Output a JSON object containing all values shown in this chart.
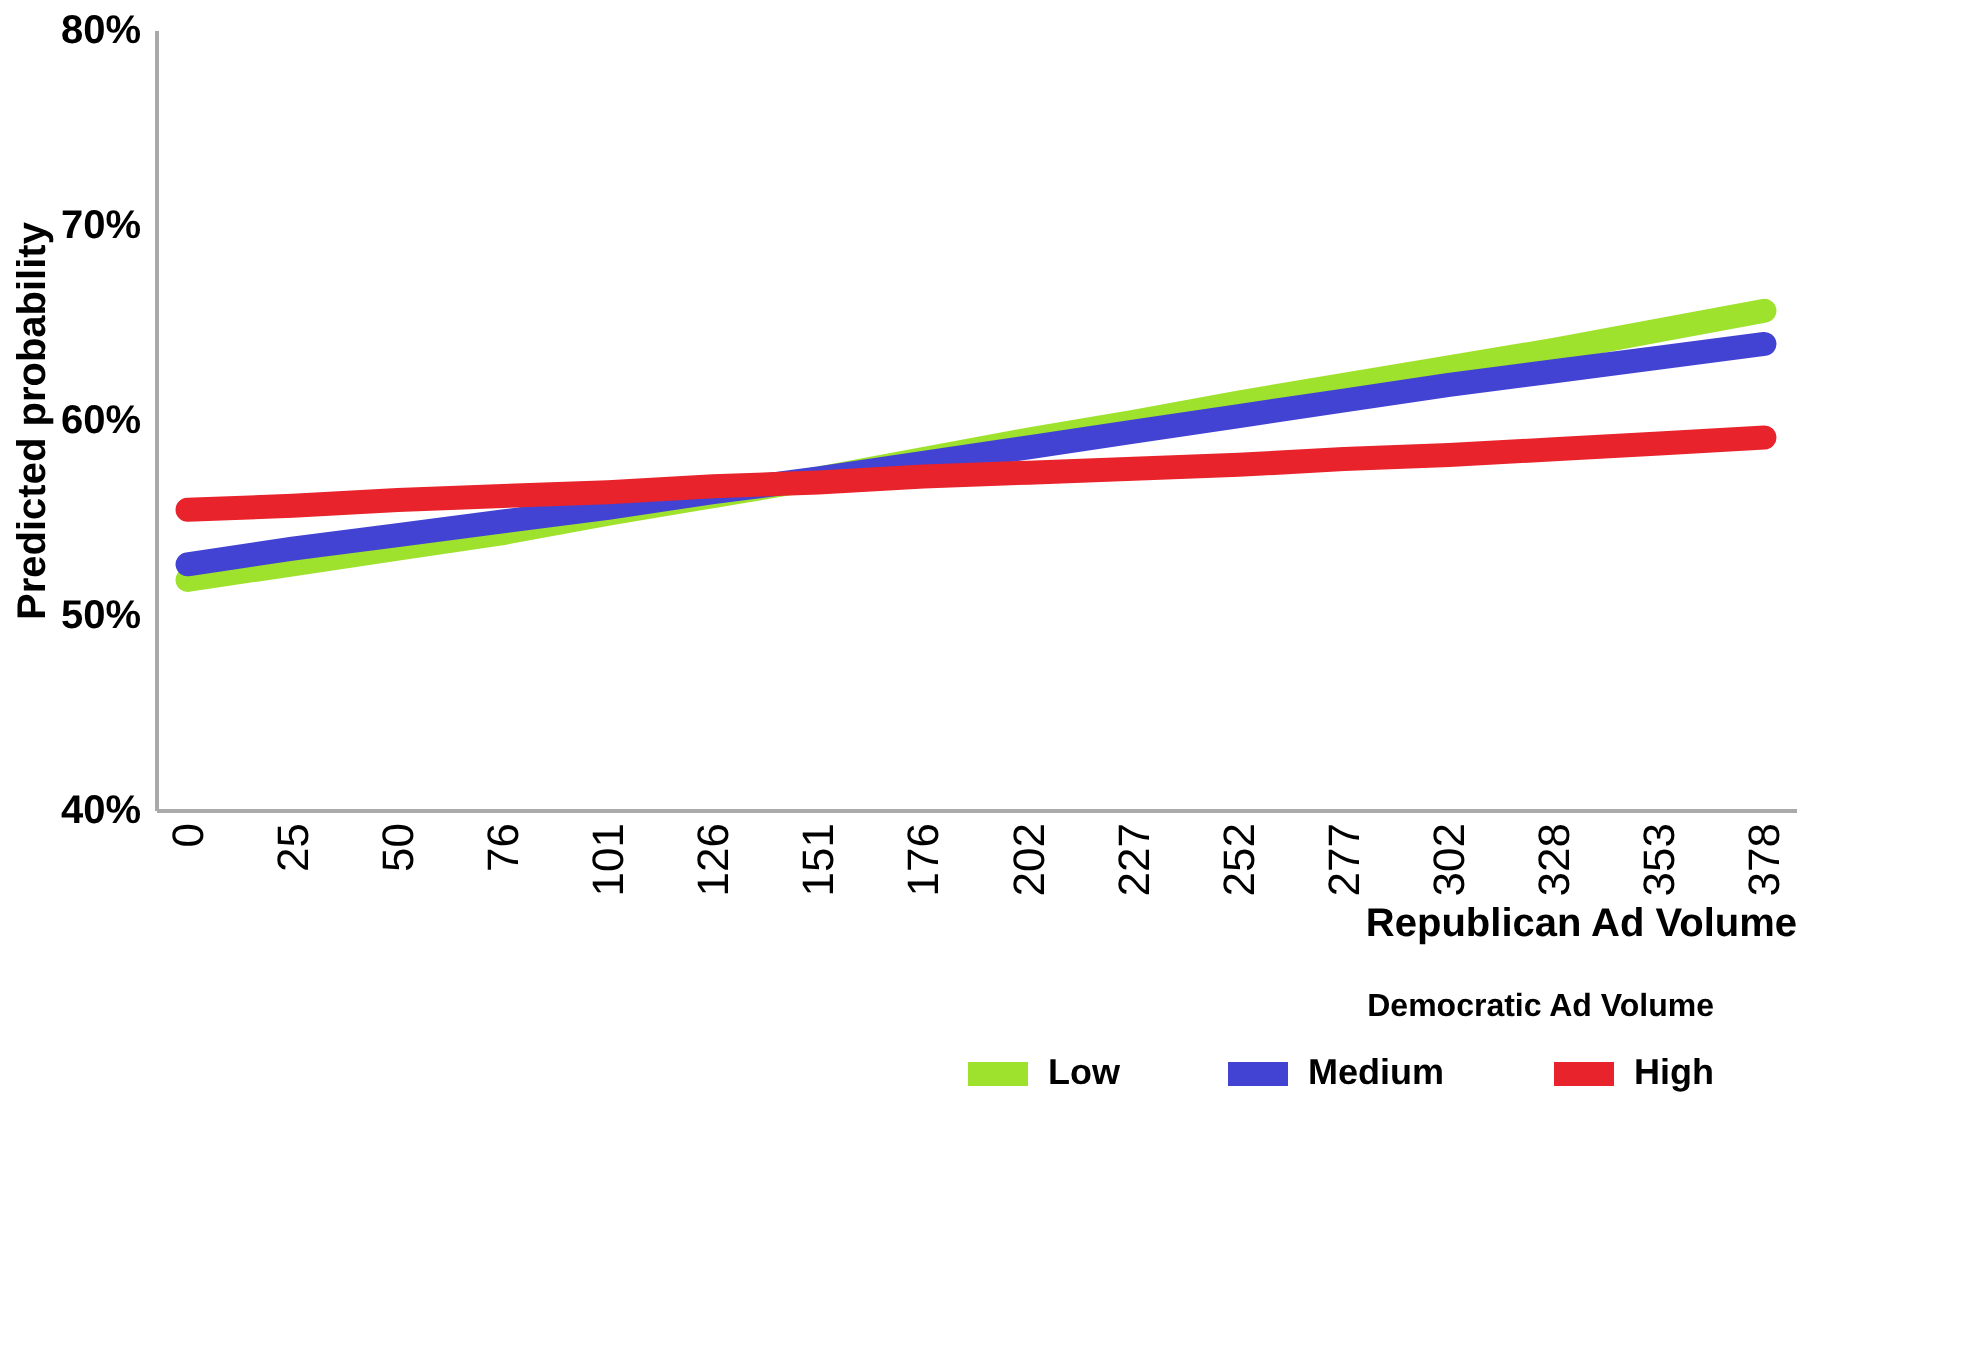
{
  "chart_data": {
    "type": "line",
    "xlabel": "Republican Ad Volume",
    "ylabel": "Predicted probability",
    "legend_title": "Democratic Ad Volume",
    "categories": [
      "0",
      "25",
      "50",
      "76",
      "101",
      "126",
      "151",
      "176",
      "202",
      "227",
      "252",
      "277",
      "302",
      "328",
      "353",
      "378"
    ],
    "series": [
      {
        "name": "Low",
        "color": "#9fe22d",
        "values": [
          51.8,
          52.6,
          53.4,
          54.2,
          55.2,
          56.1,
          57.0,
          58.0,
          59.0,
          59.9,
          60.9,
          61.8,
          62.7,
          63.6,
          64.6,
          65.6
        ]
      },
      {
        "name": "Medium",
        "color": "#4343d3",
        "values": [
          52.6,
          53.4,
          54.1,
          54.8,
          55.5,
          56.3,
          57.0,
          57.8,
          58.6,
          59.4,
          60.2,
          61.0,
          61.8,
          62.5,
          63.2,
          63.9
        ]
      },
      {
        "name": "High",
        "color": "#e8232b",
        "values": [
          55.4,
          55.6,
          55.9,
          56.1,
          56.3,
          56.6,
          56.8,
          57.1,
          57.3,
          57.5,
          57.7,
          58.0,
          58.2,
          58.5,
          58.8,
          59.1
        ]
      }
    ],
    "ylim": [
      40,
      80
    ],
    "yticks": [
      {
        "value": 40,
        "label": "40%"
      },
      {
        "value": 50,
        "label": "50%"
      },
      {
        "value": 60,
        "label": "60%"
      },
      {
        "value": 70,
        "label": "70%"
      },
      {
        "value": 80,
        "label": "80%"
      }
    ],
    "grid": false,
    "legend": "bottom right",
    "line_style": "solid"
  }
}
